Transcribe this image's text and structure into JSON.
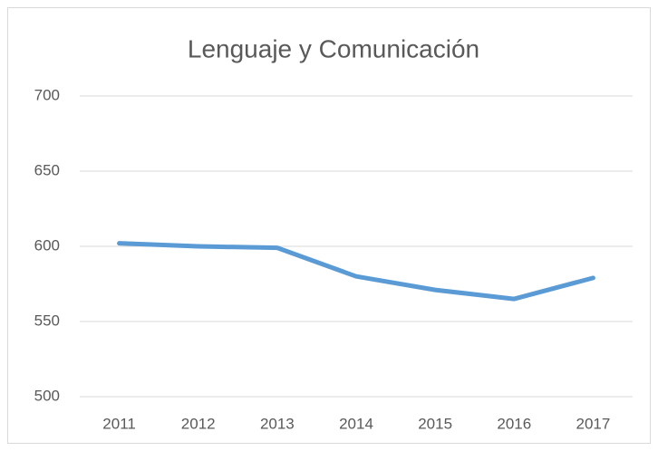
{
  "chart_data": {
    "type": "line",
    "title": "Lenguaje y Comunicación",
    "categories": [
      "2011",
      "2012",
      "2013",
      "2014",
      "2015",
      "2016",
      "2017"
    ],
    "values": [
      602,
      600,
      599,
      580,
      571,
      565,
      579
    ],
    "color": "#5b9bd5",
    "ylim": [
      500,
      700
    ],
    "yticks": [
      500,
      550,
      600,
      650,
      700
    ],
    "grid": true
  }
}
